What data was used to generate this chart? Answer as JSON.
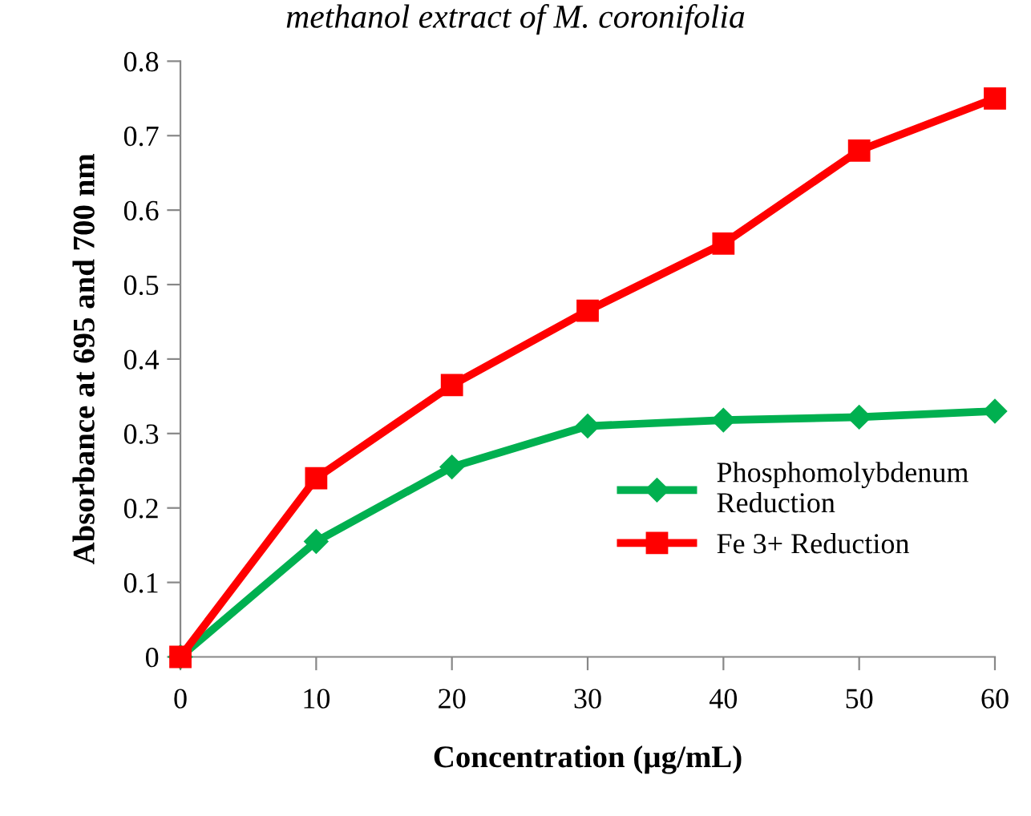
{
  "chart_data": {
    "type": "line",
    "title": "methanol extract of M. coronifolia",
    "xlabel": "Concentration (µg/mL)",
    "ylabel": "Absorbance at 695 and 700 nm",
    "x": [
      0,
      10,
      20,
      30,
      40,
      50,
      60
    ],
    "series": [
      {
        "name": "Phosphomolybdenum\nReduction",
        "color": "#00b050",
        "marker": "diamond",
        "values": [
          0,
          0.155,
          0.255,
          0.31,
          0.318,
          0.322,
          0.33
        ]
      },
      {
        "name": "Fe 3+ Reduction",
        "color": "#ff0000",
        "marker": "square",
        "values": [
          0,
          0.24,
          0.365,
          0.465,
          0.555,
          0.68,
          0.75
        ]
      }
    ],
    "xlim": [
      0,
      60
    ],
    "xticks": [
      0,
      10,
      20,
      30,
      40,
      50,
      60
    ],
    "ylim": [
      0,
      0.8
    ],
    "yticks": [
      0,
      0.1,
      0.2,
      0.3,
      0.4,
      0.5,
      0.6,
      0.7,
      0.8
    ],
    "grid": false,
    "legend": "bottom right",
    "line_style": "solid"
  }
}
